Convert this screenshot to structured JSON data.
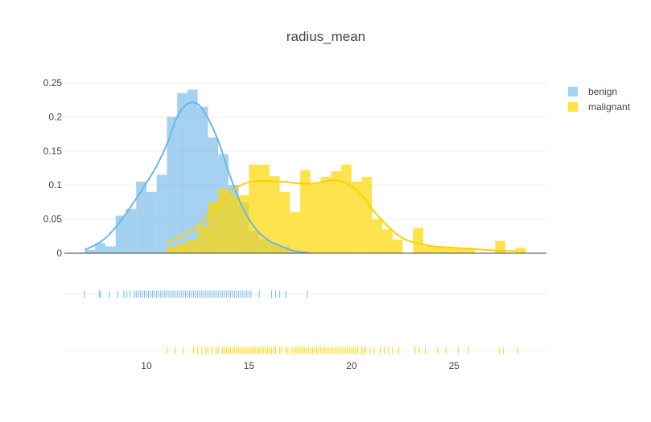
{
  "chart_data": {
    "type": "histogram",
    "title": "radius_mean",
    "xlabel": "",
    "ylabel": "",
    "xlim": [
      6,
      29.5
    ],
    "ylim": [
      0,
      0.25
    ],
    "x_ticks": [
      10,
      15,
      20,
      25
    ],
    "y_ticks": [
      0,
      0.05,
      0.1,
      0.15,
      0.2,
      0.25
    ],
    "y_tick_labels": [
      "0",
      "0.05",
      "0.1",
      "0.15",
      "0.2",
      "0.25"
    ],
    "legend_position": "top-right",
    "bin_width": 0.5,
    "series": [
      {
        "name": "benign",
        "color": "#74b9e8",
        "bins": [
          [
            7.0,
            0.005
          ],
          [
            7.5,
            0.015
          ],
          [
            8.0,
            0.01
          ],
          [
            8.5,
            0.055
          ],
          [
            9.0,
            0.065
          ],
          [
            9.5,
            0.105
          ],
          [
            10.0,
            0.09
          ],
          [
            10.5,
            0.115
          ],
          [
            11.0,
            0.2
          ],
          [
            11.5,
            0.235
          ],
          [
            12.0,
            0.24
          ],
          [
            12.5,
            0.215
          ],
          [
            13.0,
            0.17
          ],
          [
            13.5,
            0.145
          ],
          [
            14.0,
            0.1
          ],
          [
            14.5,
            0.075
          ],
          [
            15.0,
            0.033
          ],
          [
            15.5,
            0.02
          ],
          [
            16.0,
            0.015
          ],
          [
            16.5,
            0.01
          ],
          [
            17.0,
            0.004
          ],
          [
            17.5,
            0.003
          ]
        ],
        "kde": [
          [
            7.0,
            0.005
          ],
          [
            7.5,
            0.012
          ],
          [
            8.0,
            0.022
          ],
          [
            8.5,
            0.038
          ],
          [
            9.0,
            0.058
          ],
          [
            9.5,
            0.08
          ],
          [
            10.0,
            0.103
          ],
          [
            10.5,
            0.128
          ],
          [
            11.0,
            0.16
          ],
          [
            11.5,
            0.2
          ],
          [
            12.0,
            0.219
          ],
          [
            12.5,
            0.219
          ],
          [
            13.0,
            0.198
          ],
          [
            13.5,
            0.165
          ],
          [
            14.0,
            0.12
          ],
          [
            14.5,
            0.08
          ],
          [
            15.0,
            0.05
          ],
          [
            15.5,
            0.03
          ],
          [
            16.0,
            0.018
          ],
          [
            16.5,
            0.011
          ],
          [
            17.0,
            0.005
          ],
          [
            17.5,
            0.002
          ],
          [
            17.8,
            0.001
          ]
        ],
        "rug": [
          6.98,
          7.7,
          7.76,
          8.2,
          8.6,
          8.9,
          9.05,
          9.2,
          9.4,
          9.5,
          9.6,
          9.7,
          9.8,
          9.9,
          10.0,
          10.1,
          10.2,
          10.3,
          10.4,
          10.5,
          10.6,
          10.7,
          10.8,
          10.9,
          11.0,
          11.1,
          11.2,
          11.3,
          11.4,
          11.5,
          11.6,
          11.7,
          11.8,
          11.9,
          12.0,
          12.1,
          12.2,
          12.3,
          12.4,
          12.5,
          12.6,
          12.7,
          12.8,
          12.9,
          13.0,
          13.1,
          13.2,
          13.3,
          13.4,
          13.5,
          13.6,
          13.7,
          13.8,
          13.9,
          14.0,
          14.1,
          14.2,
          14.3,
          14.4,
          14.5,
          14.6,
          14.7,
          14.8,
          14.9,
          15.0,
          15.1,
          15.5,
          16.1,
          16.3,
          16.5,
          16.8,
          17.85
        ]
      },
      {
        "name": "malignant",
        "color": "#ffd700",
        "bins": [
          [
            11.0,
            0.01
          ],
          [
            11.5,
            0.015
          ],
          [
            12.0,
            0.02
          ],
          [
            12.5,
            0.04
          ],
          [
            13.0,
            0.075
          ],
          [
            13.5,
            0.095
          ],
          [
            14.0,
            0.085
          ],
          [
            14.5,
            0.085
          ],
          [
            15.0,
            0.13
          ],
          [
            15.5,
            0.13
          ],
          [
            16.0,
            0.113
          ],
          [
            16.5,
            0.09
          ],
          [
            17.0,
            0.06
          ],
          [
            17.5,
            0.122
          ],
          [
            18.0,
            0.102
          ],
          [
            18.5,
            0.112
          ],
          [
            19.0,
            0.12
          ],
          [
            19.5,
            0.13
          ],
          [
            20.0,
            0.105
          ],
          [
            20.5,
            0.112
          ],
          [
            21.0,
            0.05
          ],
          [
            21.5,
            0.035
          ],
          [
            22.0,
            0.02
          ],
          [
            23.0,
            0.037
          ],
          [
            23.5,
            0.01
          ],
          [
            24.0,
            0.01
          ],
          [
            24.5,
            0.008
          ],
          [
            25.0,
            0.008
          ],
          [
            25.5,
            0.008
          ],
          [
            27.0,
            0.018
          ],
          [
            28.0,
            0.008
          ]
        ],
        "kde": [
          [
            11.0,
            0.016
          ],
          [
            11.5,
            0.022
          ],
          [
            12.0,
            0.03
          ],
          [
            12.5,
            0.04
          ],
          [
            13.0,
            0.055
          ],
          [
            13.5,
            0.07
          ],
          [
            14.0,
            0.085
          ],
          [
            14.5,
            0.098
          ],
          [
            15.0,
            0.104
          ],
          [
            15.5,
            0.106
          ],
          [
            16.0,
            0.106
          ],
          [
            16.5,
            0.105
          ],
          [
            17.0,
            0.104
          ],
          [
            17.5,
            0.102
          ],
          [
            18.0,
            0.102
          ],
          [
            18.5,
            0.104
          ],
          [
            19.0,
            0.107
          ],
          [
            19.5,
            0.105
          ],
          [
            20.0,
            0.098
          ],
          [
            20.5,
            0.085
          ],
          [
            21.0,
            0.065
          ],
          [
            21.5,
            0.048
          ],
          [
            22.0,
            0.033
          ],
          [
            22.5,
            0.022
          ],
          [
            23.0,
            0.016
          ],
          [
            23.5,
            0.013
          ],
          [
            24.0,
            0.01
          ],
          [
            25.0,
            0.008
          ],
          [
            26.0,
            0.006
          ],
          [
            27.0,
            0.004
          ],
          [
            28.1,
            0.003
          ]
        ],
        "rug": [
          11.0,
          11.4,
          11.8,
          12.3,
          12.5,
          12.7,
          12.9,
          13.0,
          13.2,
          13.4,
          13.5,
          13.7,
          13.8,
          13.9,
          14.0,
          14.1,
          14.2,
          14.3,
          14.4,
          14.5,
          14.6,
          14.7,
          14.8,
          14.9,
          15.0,
          15.1,
          15.2,
          15.3,
          15.4,
          15.5,
          15.6,
          15.7,
          15.8,
          15.9,
          16.0,
          16.1,
          16.2,
          16.3,
          16.5,
          16.6,
          16.8,
          16.9,
          17.1,
          17.2,
          17.3,
          17.4,
          17.5,
          17.6,
          17.7,
          17.8,
          17.9,
          18.0,
          18.1,
          18.2,
          18.3,
          18.4,
          18.5,
          18.6,
          18.7,
          18.8,
          18.9,
          19.0,
          19.1,
          19.2,
          19.3,
          19.4,
          19.5,
          19.6,
          19.7,
          19.8,
          19.9,
          20.0,
          20.1,
          20.2,
          20.3,
          20.5,
          20.6,
          20.7,
          20.9,
          21.1,
          21.4,
          21.6,
          21.8,
          22.0,
          22.3,
          23.1,
          23.3,
          23.6,
          24.2,
          24.6,
          25.2,
          25.7,
          27.2,
          27.4,
          28.1
        ]
      }
    ]
  }
}
